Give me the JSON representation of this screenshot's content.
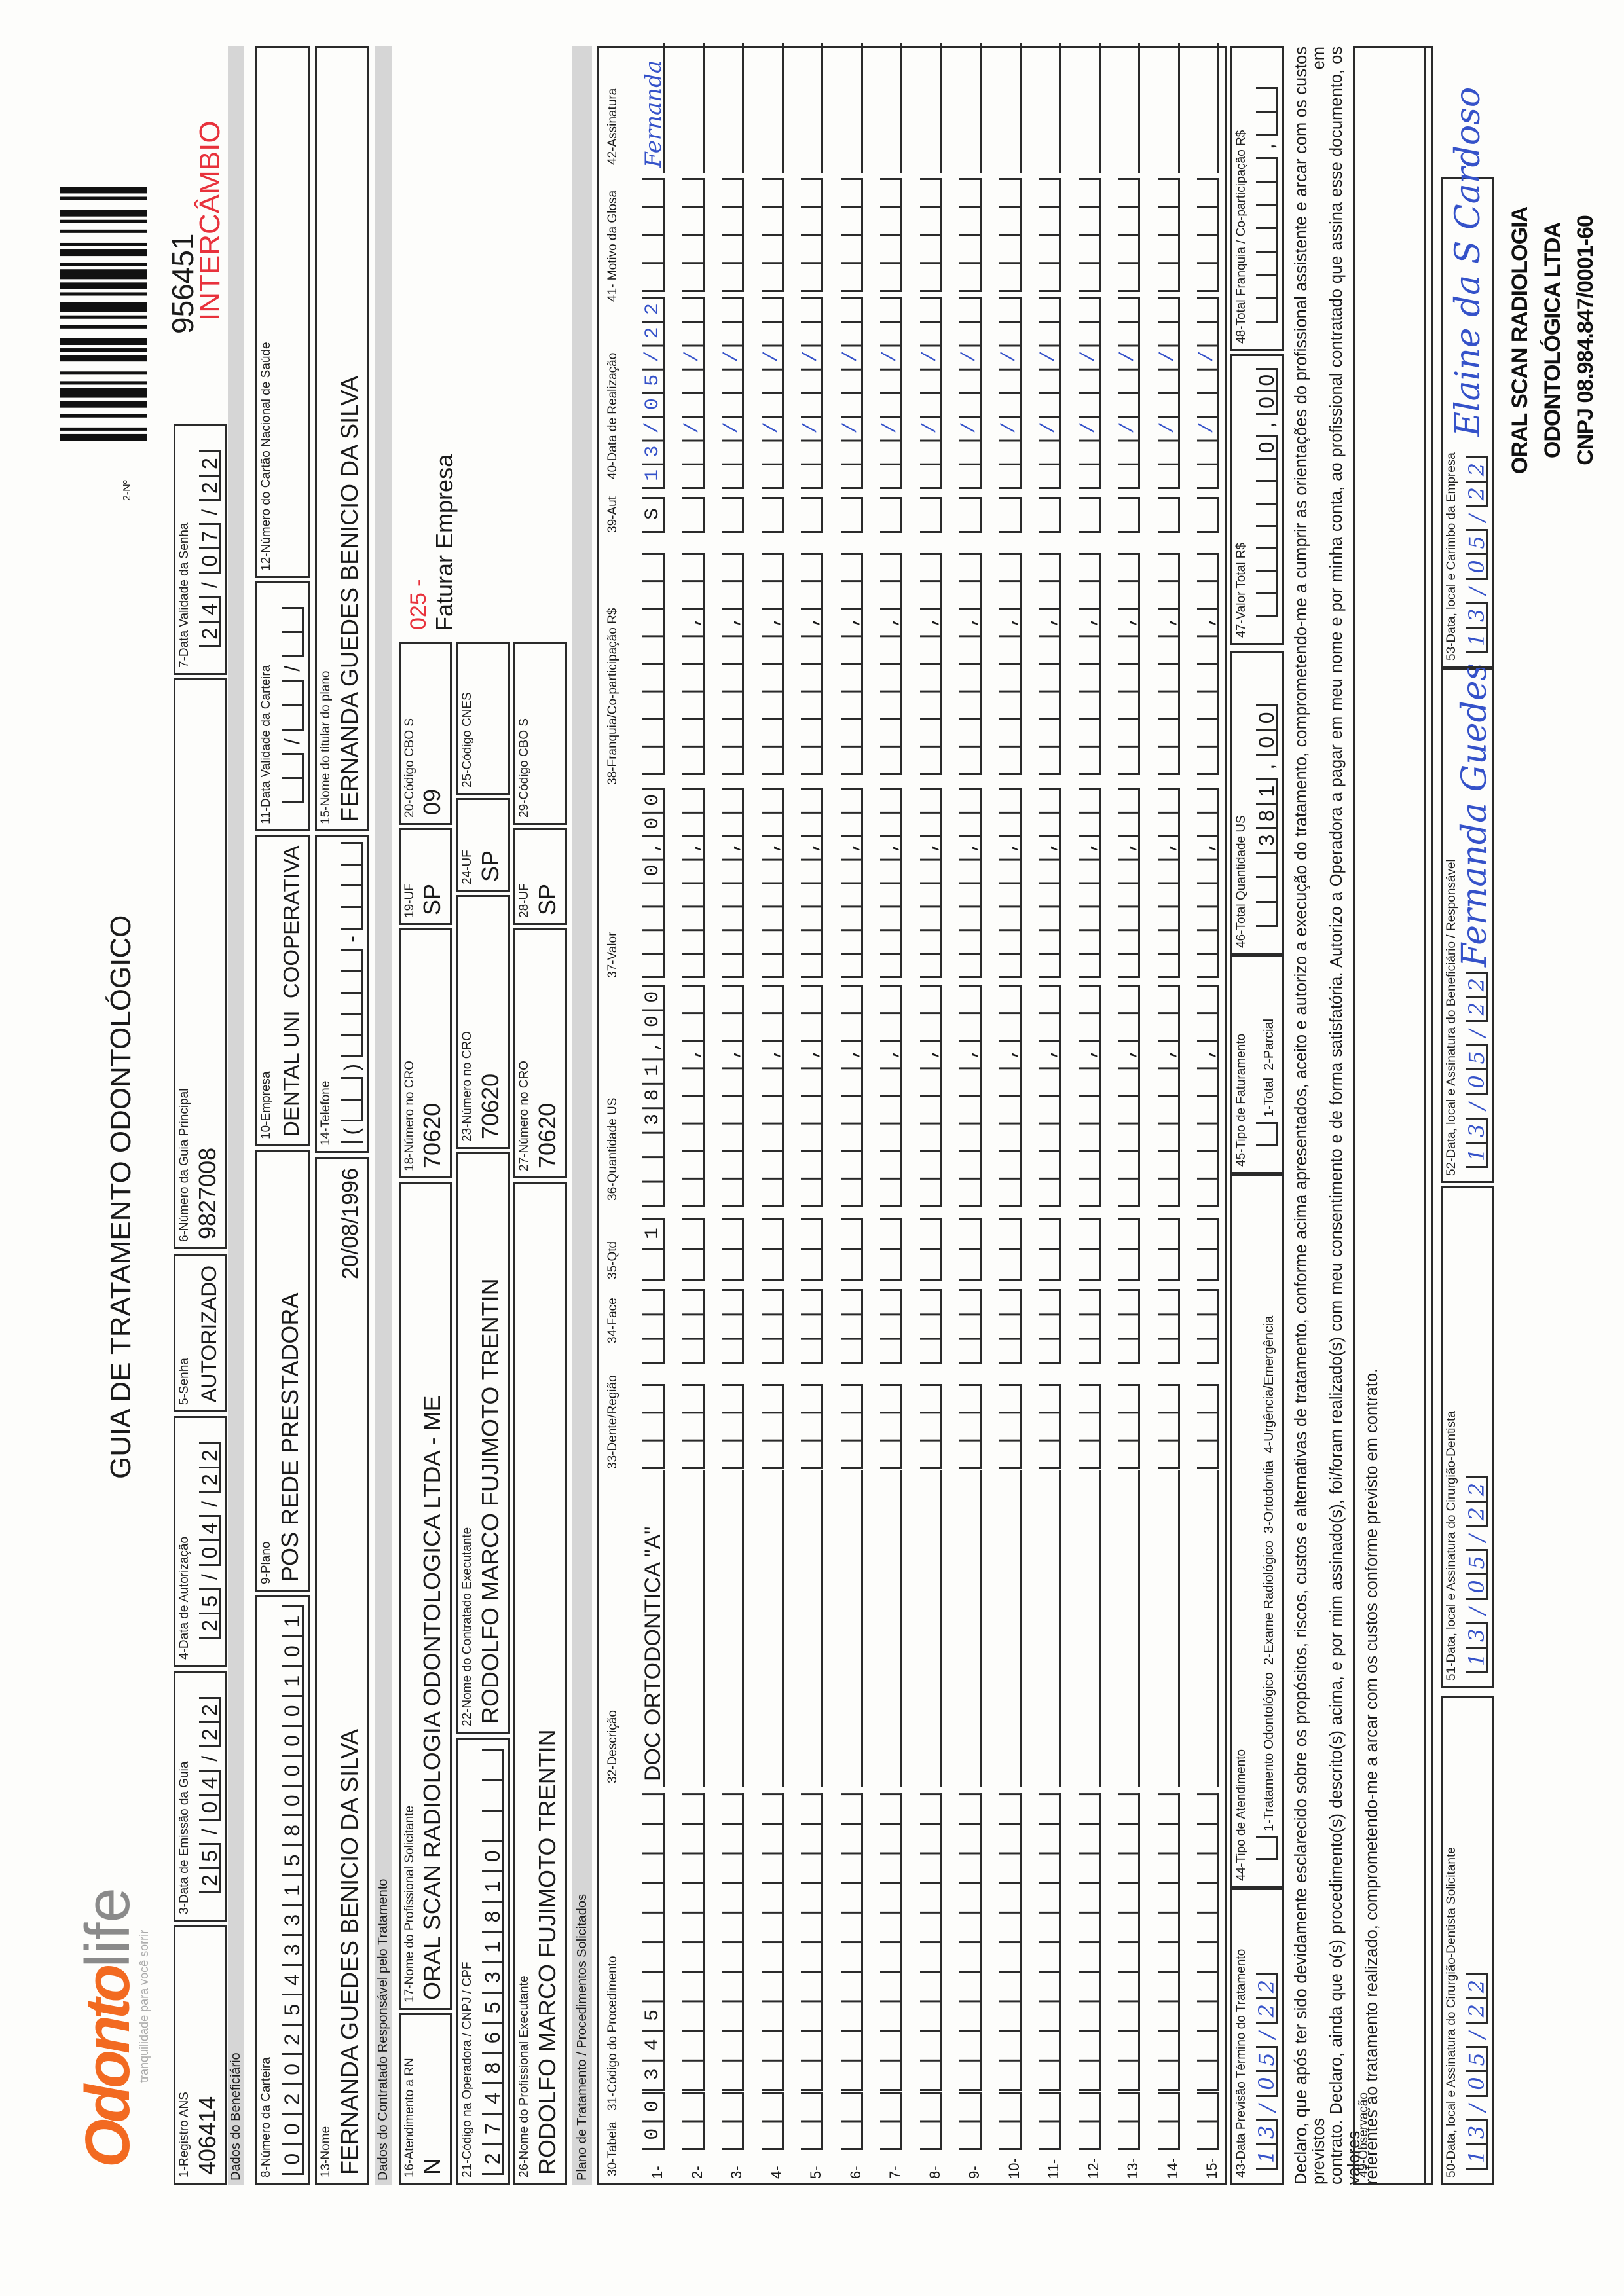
{
  "header": {
    "logo_text_a": "Odonto",
    "logo_text_b": "life",
    "logo_tagline": "tranquilidade para você sorrir",
    "title": "GUIA DE TRATAMENTO ODONTOLÓGICO",
    "numero_label": "2-Nº",
    "numero": "956451",
    "intercambio": "INTERCÂMBIO",
    "brand_color": "#f26a21",
    "intercambio_color": "#e8323c"
  },
  "fields": {
    "f1": {
      "label": "1-Registro ANS",
      "value": "406414"
    },
    "f3": {
      "label": "3-Data de Emissão da Guia",
      "value": "25/04/22"
    },
    "f4": {
      "label": "4-Data de Autorização",
      "value": "25/04/22"
    },
    "f5": {
      "label": "5-Senha",
      "value": "AUTORIZADO"
    },
    "f6": {
      "label": "6-Número da Guia Principal",
      "value": "9827008"
    },
    "f7": {
      "label": "7-Data Validade da Senha",
      "value": "24/07/22"
    },
    "f8": {
      "label": "8-Número da Carteira",
      "value": "0020254331580000101"
    },
    "f9": {
      "label": "9-Plano",
      "value": "POS REDE PRESTADORA"
    },
    "f10": {
      "label": "10-Empresa",
      "value": "DENTAL UNI  COOPERATIVA"
    },
    "f11": {
      "label": "11-Data Validade da Carteira",
      "value": "  /  /  "
    },
    "f12": {
      "label": "12-Número do Cartão Nacional de Saúde",
      "value": ""
    },
    "f13": {
      "label": "13-Nome",
      "value": "FERNANDA GUEDES BENICIO DA SILVA",
      "extra": "20/08/1996"
    },
    "f14": {
      "label": "14-Telefone",
      "value": "(  )     -    "
    },
    "f15": {
      "label": "15-Nome do titular do plano",
      "value": "FERNANDA GUEDES BENICIO DA SILVA"
    },
    "f16": {
      "label": "16-Atendimento a RN",
      "value": "N"
    },
    "f17": {
      "label": "17-Nome do Profissional Solicitante",
      "value": "ORAL SCAN RADIOLOGIA ODONTOLOGICA LTDA - ME"
    },
    "f18": {
      "label": "18-Número no CRO",
      "value": "70620"
    },
    "f19": {
      "label": "19-UF",
      "value": "SP"
    },
    "f20": {
      "label": "20-Código CBO S",
      "value": "09"
    },
    "f21": {
      "label": "21-Código na Operadora / CNPJ / CPF",
      "value": "27486531810   "
    },
    "f22": {
      "label": "22-Nome do Contratado Executante",
      "value": "RODOLFO MARCO FUJIMOTO TRENTIN"
    },
    "f23": {
      "label": "23-Número no CRO",
      "value": "70620"
    },
    "f24": {
      "label": "24-UF",
      "value": "SP"
    },
    "f25": {
      "label": "25-Código CNES",
      "value": ""
    },
    "f26": {
      "label": "26-Nome do Profissional Executante",
      "value": "RODOLFO MARCO FUJIMOTO TRENTIN"
    },
    "f27": {
      "label": "27-Número no CRO",
      "value": "70620"
    },
    "f28": {
      "label": "28-UF",
      "value": "SP"
    },
    "f29": {
      "label": "29-Código CBO S",
      "value": ""
    },
    "f43": {
      "label": "43-Data Previsão Término do Tratamento",
      "value": "13/05/22"
    },
    "f44": {
      "label": "44-Tipo de Atendimento",
      "value": " ",
      "options": "1-Tratamento Odontológico  2-Exame Radiológico  3-Ortodontia  4-Urgência/Emergência"
    },
    "f45": {
      "label": "45-Tipo de Faturamento",
      "value": " ",
      "options": "1-Total  2-Parcial"
    },
    "f46": {
      "label": "46-Total Quantidade US",
      "value": "   381,00"
    },
    "f47": {
      "label": "47-Valor Total R$",
      "value": "       0,00"
    },
    "f48": {
      "label": "48-Total Franquia / Co-participação R$",
      "value": "       ,  "
    },
    "f49": {
      "label": "49-Observação",
      "value": ""
    },
    "f50": {
      "label": "50-Data, local e Assinatura do Cirurgião-Dentista Solicitante",
      "value": "13/05/22"
    },
    "f51": {
      "label": "51-Data, local e Assinatura do Cirurgião-Dentista",
      "value": "13/05/22"
    },
    "f52": {
      "label": "52-Data, local e Assinatura do Beneficiário / Responsável",
      "value": "13/05/22",
      "signature": "Fernanda Guedes"
    },
    "f53": {
      "label": "53-Data, local e Carimbo da Empresa",
      "value": "13/05/22",
      "signature": "Elaine da S Cardoso"
    }
  },
  "faturamento": {
    "code": "025 -",
    "text": "Faturar Empresa"
  },
  "sections": {
    "beneficiario": "Dados do Beneficiário",
    "contratado": "Dados do Contratado Responsável pelo Tratamento",
    "plano": "Plano de Tratamento / Procedimentos Solicitados"
  },
  "table": {
    "headers": {
      "tabela": "30-Tabela",
      "codigo": "31-Código do Procedimento",
      "descricao": "32-Descrição",
      "dente": "33-Dente/Região",
      "face": "34-Face",
      "qtd": "35-Qtd",
      "qtd_us": "36-Quantidade US",
      "valor": "37-Valor",
      "franquia": "38-Franquia/Co-participação R$",
      "aut": "39-Aut",
      "data": "40-Data de Realização",
      "glosa": "41- Motivo da Glosa",
      "assinatura": "42-Assinatura"
    },
    "rows": [
      {
        "num": "1-",
        "tabela": "00",
        "codigo": "345       ",
        "descricao": "DOC ORTODONTICA \"A\"",
        "dente": "   ",
        "face": "   ",
        "qtd": " 1",
        "qtd_us": "   381,00",
        "valor": "    0,00",
        "franquia": "        ",
        "aut": "S",
        "data": "13/05/22",
        "glosa": "    ",
        "assinatura": "Fernanda"
      },
      {
        "num": "2-"
      },
      {
        "num": "3-"
      },
      {
        "num": "4-"
      },
      {
        "num": "5-"
      },
      {
        "num": "6-"
      },
      {
        "num": "7-"
      },
      {
        "num": "8-"
      },
      {
        "num": "9-"
      },
      {
        "num": "10-"
      },
      {
        "num": "11-"
      },
      {
        "num": "12-"
      },
      {
        "num": "13-"
      },
      {
        "num": "14-"
      },
      {
        "num": "15-"
      }
    ]
  },
  "declaration": [
    "Declaro, que após ter sido devidamente esclarecido sobre os propósitos, riscos, custos e alternativas de tratamento, conforme acima apresentados, aceito e autorizo a execução do tratamento, comprometendo-me a cumprir as orientações do profissional assistente e arcar com os custos previstos em",
    "contrato. Declaro, ainda que o(s) procedimento(s) descrito(s) acima, e por mim assinado(s), foi/foram realizado(s) com meu consentimento e de forma satisfatória. Autorizo a Operadora a pagar em meu nome e por minha conta, ao profissional contratado que assina esse documento, os valores",
    "referentes ao tratamento realizado, comprometendo-me a arcar com os custos conforme previsto em contrato."
  ],
  "stamp": [
    "ORAL SCAN RADIOLOGIA",
    "ODONTOLÓGICA LTDA",
    "CNPJ 08.984.847/0001-60"
  ]
}
